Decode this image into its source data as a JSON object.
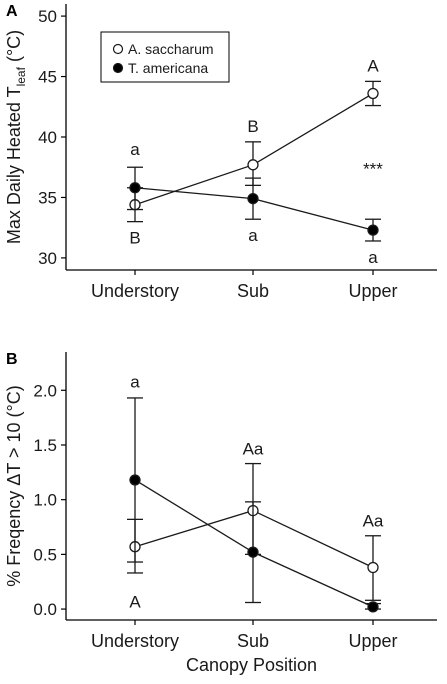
{
  "chart_data": [
    {
      "panel": "A",
      "type": "line",
      "categories": [
        "Understory",
        "Sub",
        "Upper"
      ],
      "ylabel": "Max Daily Heated T",
      "ylabel_subscript": "leaf",
      "ylabel_unit": "(°C)",
      "ylim": [
        29,
        51
      ],
      "yticks": [
        30,
        35,
        40,
        45,
        50
      ],
      "grid": false,
      "legend_position": "top-left",
      "series": [
        {
          "name": "A. saccharum",
          "marker": "open-circle",
          "values": [
            34.4,
            37.7,
            43.6
          ],
          "err_low": [
            33.0,
            36.0,
            42.6
          ],
          "err_high": [
            35.8,
            39.6,
            44.6
          ],
          "letters": [
            "B",
            "B",
            "A"
          ]
        },
        {
          "name": "T. americana",
          "marker": "filled-circle",
          "values": [
            35.8,
            34.9,
            32.3
          ],
          "err_low": [
            34.0,
            33.2,
            31.4
          ],
          "err_high": [
            37.5,
            36.6,
            33.2
          ],
          "letters": [
            "a",
            "a",
            "a"
          ]
        }
      ],
      "annotations": [
        {
          "text": "***",
          "category": "Upper",
          "y": 37.4
        }
      ]
    },
    {
      "panel": "B",
      "type": "line",
      "categories": [
        "Understory",
        "Sub",
        "Upper"
      ],
      "xlabel": "Canopy Position",
      "ylabel": "% Freqency ΔT > 10 (°C)",
      "ylim": [
        -0.1,
        2.35
      ],
      "yticks": [
        0.0,
        0.5,
        1.0,
        1.5,
        2.0
      ],
      "yticklabels": [
        "0.0",
        "0.5",
        "1.0",
        "1.5",
        "2.0"
      ],
      "grid": false,
      "series": [
        {
          "name": "A. saccharum",
          "marker": "open-circle",
          "values": [
            0.57,
            0.9,
            0.38
          ],
          "err_low": [
            0.33,
            0.5,
            0.08
          ],
          "err_high": [
            0.82,
            1.33,
            0.67
          ]
        },
        {
          "name": "T. americana",
          "marker": "filled-circle",
          "values": [
            1.18,
            0.52,
            0.02
          ],
          "err_low": [
            0.43,
            0.06,
            0.0
          ],
          "err_high": [
            1.93,
            0.98,
            0.05
          ]
        }
      ],
      "letters": [
        {
          "text": "a",
          "category": "Understory",
          "y": 2.08
        },
        {
          "text": "A",
          "category": "Understory",
          "y": 0.07
        },
        {
          "text": "Aa",
          "category": "Sub",
          "y": 1.47
        },
        {
          "text": "Aa",
          "category": "Upper",
          "y": 0.81
        }
      ]
    }
  ],
  "colors": {
    "line": "#1a1a1a",
    "open_fill": "#ffffff",
    "filled": "#000000"
  }
}
